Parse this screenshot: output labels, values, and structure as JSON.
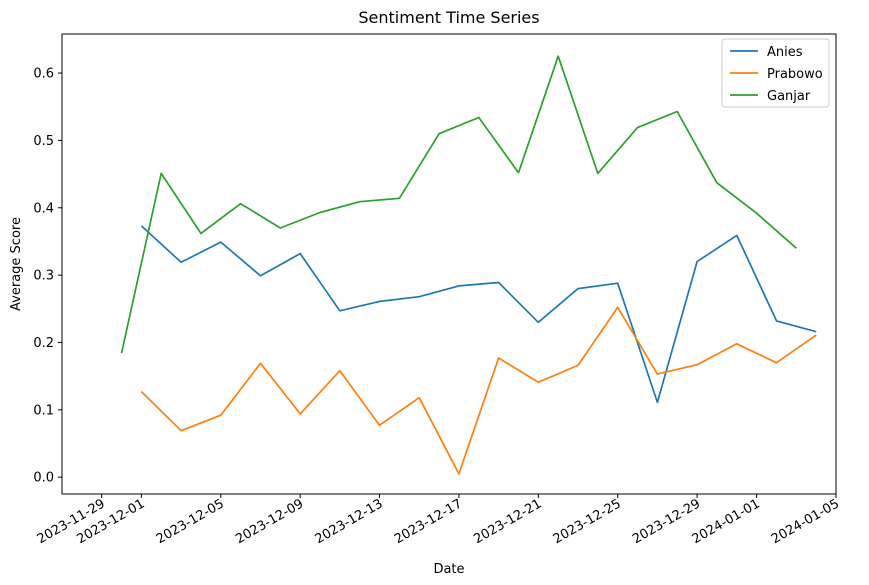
{
  "chart_data": {
    "type": "line",
    "title": "Sentiment Time Series",
    "xlabel": "Date",
    "ylabel": "Average Score",
    "x_ticks": [
      "2023-11-29",
      "2023-12-01",
      "2023-12-05",
      "2023-12-09",
      "2023-12-13",
      "2023-12-17",
      "2023-12-21",
      "2023-12-25",
      "2023-12-29",
      "2024-01-01",
      "2024-01-05"
    ],
    "y_ticks": [
      "0.0",
      "0.1",
      "0.2",
      "0.3",
      "0.4",
      "0.5",
      "0.6"
    ],
    "xlim": [
      "2023-11-27",
      "2024-01-05"
    ],
    "ylim": [
      -0.025,
      0.658
    ],
    "grid": false,
    "legend_position": "top-right",
    "series": [
      {
        "name": "Anies",
        "color": "#1f77b4",
        "points": [
          [
            "2023-12-01",
            0.373
          ],
          [
            "2023-12-03",
            0.319
          ],
          [
            "2023-12-05",
            0.349
          ],
          [
            "2023-12-07",
            0.299
          ],
          [
            "2023-12-09",
            0.332
          ],
          [
            "2023-12-11",
            0.247
          ],
          [
            "2023-12-13",
            0.261
          ],
          [
            "2023-12-15",
            0.268
          ],
          [
            "2023-12-17",
            0.284
          ],
          [
            "2023-12-19",
            0.289
          ],
          [
            "2023-12-21",
            0.23
          ],
          [
            "2023-12-23",
            0.28
          ],
          [
            "2023-12-25",
            0.288
          ],
          [
            "2023-12-27",
            0.111
          ],
          [
            "2023-12-29",
            0.32
          ],
          [
            "2023-12-31",
            0.359
          ],
          [
            "2024-01-02",
            0.232
          ],
          [
            "2024-01-04",
            0.216
          ]
        ]
      },
      {
        "name": "Prabowo",
        "color": "#ff7f0e",
        "points": [
          [
            "2023-12-01",
            0.127
          ],
          [
            "2023-12-03",
            0.069
          ],
          [
            "2023-12-05",
            0.092
          ],
          [
            "2023-12-07",
            0.169
          ],
          [
            "2023-12-09",
            0.094
          ],
          [
            "2023-12-11",
            0.158
          ],
          [
            "2023-12-13",
            0.077
          ],
          [
            "2023-12-15",
            0.118
          ],
          [
            "2023-12-17",
            0.005
          ],
          [
            "2023-12-19",
            0.177
          ],
          [
            "2023-12-21",
            0.141
          ],
          [
            "2023-12-23",
            0.166
          ],
          [
            "2023-12-25",
            0.252
          ],
          [
            "2023-12-27",
            0.153
          ],
          [
            "2023-12-29",
            0.167
          ],
          [
            "2023-12-31",
            0.198
          ],
          [
            "2024-01-02",
            0.17
          ],
          [
            "2024-01-04",
            0.211
          ]
        ]
      },
      {
        "name": "Ganjar",
        "color": "#2ca02c",
        "points": [
          [
            "2023-11-30",
            0.184
          ],
          [
            "2023-12-02",
            0.451
          ],
          [
            "2023-12-04",
            0.362
          ],
          [
            "2023-12-06",
            0.406
          ],
          [
            "2023-12-08",
            0.37
          ],
          [
            "2023-12-10",
            0.393
          ],
          [
            "2023-12-12",
            0.409
          ],
          [
            "2023-12-14",
            0.414
          ],
          [
            "2023-12-16",
            0.51
          ],
          [
            "2023-12-18",
            0.534
          ],
          [
            "2023-12-20",
            0.452
          ],
          [
            "2023-12-22",
            0.625
          ],
          [
            "2023-12-24",
            0.451
          ],
          [
            "2023-12-26",
            0.519
          ],
          [
            "2023-12-28",
            0.543
          ],
          [
            "2023-12-30",
            0.437
          ],
          [
            "2024-01-01",
            0.392
          ],
          [
            "2024-01-03",
            0.34
          ]
        ]
      }
    ]
  }
}
